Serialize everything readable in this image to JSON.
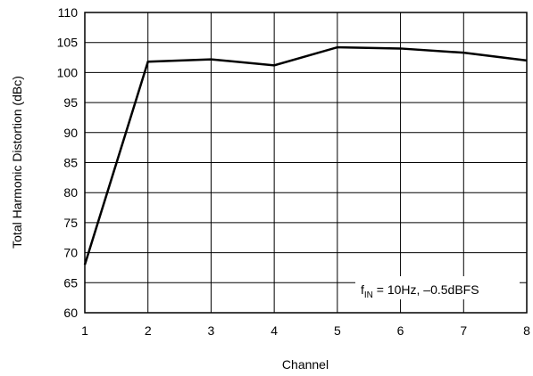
{
  "chart_data": {
    "type": "line",
    "title": "",
    "xlabel": "Channel",
    "ylabel": "Total Harmonic Distortion (dBc)",
    "x": [
      1,
      2,
      3,
      4,
      5,
      6,
      7,
      8
    ],
    "xlim": [
      1,
      8
    ],
    "ylim": [
      60,
      110
    ],
    "xticks": [
      "1",
      "2",
      "3",
      "4",
      "5",
      "6",
      "7",
      "8"
    ],
    "yticks": [
      "60",
      "65",
      "70",
      "75",
      "80",
      "85",
      "90",
      "95",
      "100",
      "105",
      "110"
    ],
    "grid": true,
    "series": [
      {
        "values": [
          68,
          101.8,
          102.2,
          101.2,
          104.2,
          104.0,
          103.3,
          102.0
        ]
      }
    ],
    "annotation": {
      "f_base": "f",
      "f_sub": "IN",
      "rest": " = 10Hz, –0.5dBFS"
    },
    "colors": {
      "line": "#000000",
      "grid": "#000000",
      "background": "#ffffff"
    }
  }
}
